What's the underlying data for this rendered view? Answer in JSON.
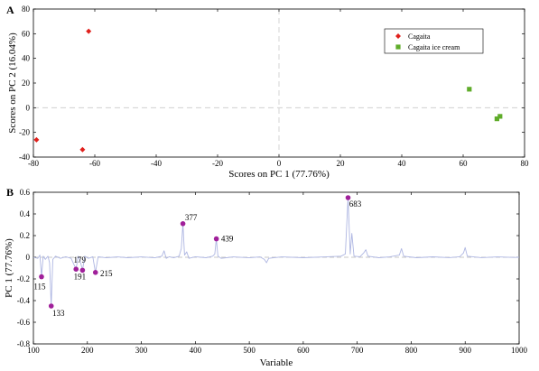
{
  "chart_data": [
    {
      "type": "scatter",
      "panel_label": "A",
      "xlabel": "Scores on PC 1 (77.76%)",
      "ylabel": "Scores on PC 2 (16.04%)",
      "xlim": [
        -80,
        80
      ],
      "ylim": [
        -40,
        80
      ],
      "xticks": [
        -80,
        -60,
        -40,
        -20,
        0,
        20,
        40,
        60,
        80
      ],
      "yticks": [
        -40,
        -20,
        0,
        20,
        40,
        60,
        80
      ],
      "legend_position": "top-right",
      "dashed_zero_lines": true,
      "series": [
        {
          "name": "Cagaita",
          "marker": "diamond",
          "color": "#e0201c",
          "points": [
            {
              "x": -62,
              "y": 62
            },
            {
              "x": -79,
              "y": -26
            },
            {
              "x": -64,
              "y": -34
            }
          ]
        },
        {
          "name": "Cagaita ice cream",
          "marker": "square",
          "color": "#5fac2a",
          "points": [
            {
              "x": 62,
              "y": 15
            },
            {
              "x": 71,
              "y": -9
            },
            {
              "x": 72,
              "y": -7
            }
          ]
        }
      ]
    },
    {
      "type": "line",
      "panel_label": "B",
      "xlabel": "Variable",
      "ylabel": "PC 1 (77.76%)",
      "xlim": [
        100,
        1000
      ],
      "ylim": [
        -0.8,
        0.6
      ],
      "xticks": [
        100,
        200,
        300,
        400,
        500,
        600,
        700,
        800,
        900,
        1000
      ],
      "yticks": [
        -0.8,
        -0.6,
        -0.4,
        -0.2,
        0,
        0.2,
        0.4,
        0.6
      ],
      "yticklabels": [
        "-0.8",
        "-0.6",
        "-0.4",
        "-0.2",
        "0",
        "0.2",
        "0.4",
        "0.6"
      ],
      "dashed_zero_line": true,
      "line_color": "#aeb6e2",
      "marker_color": "#a0209a",
      "loading_line": [
        [
          100,
          0
        ],
        [
          108,
          -0.01
        ],
        [
          112,
          0.02
        ],
        [
          115,
          -0.18
        ],
        [
          118,
          0.01
        ],
        [
          122,
          -0.02
        ],
        [
          127,
          0.01
        ],
        [
          130,
          -0.05
        ],
        [
          133,
          -0.45
        ],
        [
          136,
          -0.02
        ],
        [
          141,
          0.01
        ],
        [
          150,
          -0.01
        ],
        [
          160,
          0.005
        ],
        [
          170,
          -0.01
        ],
        [
          179,
          -0.11
        ],
        [
          183,
          0.01
        ],
        [
          186,
          -0.02
        ],
        [
          191,
          -0.12
        ],
        [
          195,
          0.01
        ],
        [
          202,
          -0.01
        ],
        [
          210,
          0.005
        ],
        [
          215,
          -0.14
        ],
        [
          220,
          0.005
        ],
        [
          235,
          -0.005
        ],
        [
          255,
          0.003
        ],
        [
          275,
          -0.004
        ],
        [
          300,
          0.003
        ],
        [
          325,
          -0.005
        ],
        [
          338,
          0.01
        ],
        [
          342,
          0.06
        ],
        [
          346,
          -0.01
        ],
        [
          352,
          0.005
        ],
        [
          360,
          -0.005
        ],
        [
          370,
          0.01
        ],
        [
          374,
          0.08
        ],
        [
          377,
          0.31
        ],
        [
          380,
          0.02
        ],
        [
          384,
          0.05
        ],
        [
          388,
          -0.01
        ],
        [
          400,
          0.005
        ],
        [
          420,
          -0.004
        ],
        [
          432,
          0.01
        ],
        [
          436,
          0.03
        ],
        [
          439,
          0.17
        ],
        [
          442,
          0.01
        ],
        [
          448,
          -0.01
        ],
        [
          470,
          0.003
        ],
        [
          500,
          -0.005
        ],
        [
          520,
          0.003
        ],
        [
          528,
          -0.02
        ],
        [
          532,
          -0.05
        ],
        [
          536,
          -0.01
        ],
        [
          560,
          0.003
        ],
        [
          600,
          -0.004
        ],
        [
          640,
          0.003
        ],
        [
          670,
          0.01
        ],
        [
          678,
          0.03
        ],
        [
          683,
          0.55
        ],
        [
          687,
          0.03
        ],
        [
          690,
          0.22
        ],
        [
          694,
          0.01
        ],
        [
          705,
          0.005
        ],
        [
          712,
          0.04
        ],
        [
          716,
          0.07
        ],
        [
          720,
          0.01
        ],
        [
          740,
          -0.004
        ],
        [
          760,
          0.003
        ],
        [
          778,
          0.02
        ],
        [
          782,
          0.08
        ],
        [
          786,
          0.01
        ],
        [
          810,
          -0.004
        ],
        [
          840,
          0.004
        ],
        [
          870,
          -0.003
        ],
        [
          890,
          0.005
        ],
        [
          897,
          0.04
        ],
        [
          900,
          0.09
        ],
        [
          904,
          0.01
        ],
        [
          930,
          -0.003
        ],
        [
          960,
          0.003
        ],
        [
          990,
          -0.002
        ],
        [
          1000,
          0
        ]
      ],
      "labeled_peaks": [
        {
          "x": 115,
          "y": -0.18,
          "label": "115"
        },
        {
          "x": 133,
          "y": -0.45,
          "label": "133"
        },
        {
          "x": 179,
          "y": -0.11,
          "label": "179"
        },
        {
          "x": 191,
          "y": -0.12,
          "label": "191"
        },
        {
          "x": 215,
          "y": -0.14,
          "label": "215"
        },
        {
          "x": 377,
          "y": 0.31,
          "label": "377"
        },
        {
          "x": 439,
          "y": 0.17,
          "label": "439"
        },
        {
          "x": 683,
          "y": 0.55,
          "label": "683"
        }
      ]
    }
  ]
}
